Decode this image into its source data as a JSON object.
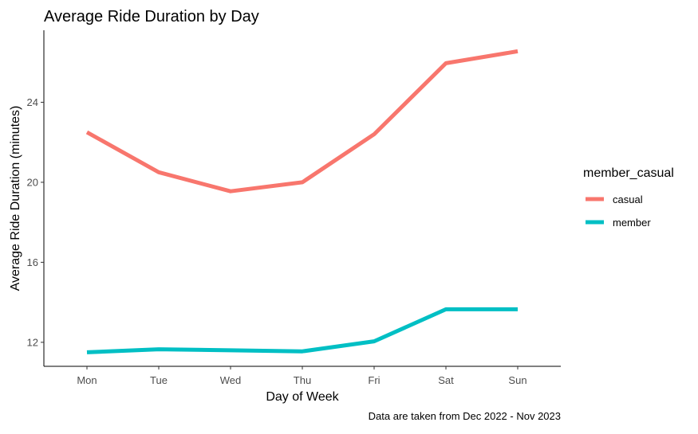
{
  "chart_data": {
    "type": "line",
    "title": "Average Ride Duration by Day",
    "xlabel": "Day of Week",
    "ylabel": "Average Ride Duration (minutes)",
    "caption": "Data are taken from Dec 2022 - Nov 2023",
    "categories": [
      "Mon",
      "Tue",
      "Wed",
      "Thu",
      "Fri",
      "Sat",
      "Sun"
    ],
    "ylim": [
      10.8,
      27.6
    ],
    "yticks": [
      12,
      16,
      20,
      24
    ],
    "grid": false,
    "legend": {
      "title": "member_casual",
      "position": "right"
    },
    "series": [
      {
        "name": "casual",
        "color": "#F8766D",
        "values": [
          22.5,
          20.5,
          19.55,
          20.0,
          22.4,
          25.95,
          26.55
        ]
      },
      {
        "name": "member",
        "color": "#00BFC4",
        "values": [
          11.5,
          11.65,
          11.6,
          11.55,
          12.05,
          13.65,
          13.65
        ]
      }
    ]
  }
}
